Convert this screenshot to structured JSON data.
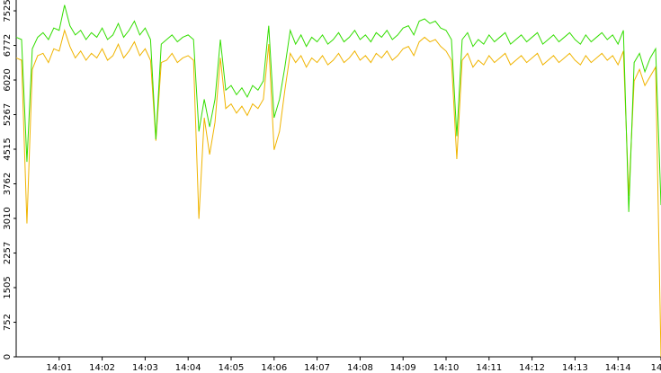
{
  "chart_data": {
    "type": "line",
    "categories": [
      null,
      null,
      null,
      null,
      null,
      null,
      null,
      null,
      "14:01",
      null,
      null,
      null,
      null,
      null,
      null,
      null,
      "14:02",
      null,
      null,
      null,
      null,
      null,
      null,
      null,
      "14:03",
      null,
      null,
      null,
      null,
      null,
      null,
      null,
      "14:04",
      null,
      null,
      null,
      null,
      null,
      null,
      null,
      "14:05",
      null,
      null,
      null,
      null,
      null,
      null,
      null,
      "14:06",
      null,
      null,
      null,
      null,
      null,
      null,
      null,
      "14:07",
      null,
      null,
      null,
      null,
      null,
      null,
      null,
      "14:08",
      null,
      null,
      null,
      null,
      null,
      null,
      null,
      "14:09",
      null,
      null,
      null,
      null,
      null,
      null,
      null,
      "14:10",
      null,
      null,
      null,
      null,
      null,
      null,
      null,
      "14:11",
      null,
      null,
      null,
      null,
      null,
      null,
      null,
      "14:12",
      null,
      null,
      null,
      null,
      null,
      null,
      null,
      "14:13",
      null,
      null,
      null,
      null,
      null,
      null,
      null,
      "14:14",
      null,
      null,
      null,
      null,
      null,
      null,
      null,
      "14"
    ],
    "series": [
      {
        "color": "#33dd00",
        "values": [
          6950,
          6900,
          4240,
          6700,
          6950,
          7050,
          6900,
          7150,
          7100,
          7650,
          7200,
          7000,
          7100,
          6900,
          7050,
          6950,
          7150,
          6900,
          7000,
          7250,
          6950,
          7100,
          7300,
          7000,
          7150,
          6900,
          4730,
          6800,
          6900,
          7000,
          6850,
          6950,
          7000,
          6900,
          4900,
          5600,
          5000,
          5600,
          6900,
          5800,
          5900,
          5700,
          5850,
          5650,
          5900,
          5800,
          6000,
          7200,
          5200,
          5600,
          6300,
          7100,
          6800,
          7000,
          6750,
          6950,
          6850,
          7000,
          6800,
          6900,
          7050,
          6850,
          6950,
          7100,
          6900,
          7000,
          6850,
          7050,
          6950,
          7100,
          6900,
          7000,
          7150,
          7200,
          7000,
          7300,
          7350,
          7250,
          7300,
          7150,
          7100,
          6900,
          4800,
          6900,
          7050,
          6750,
          6900,
          6800,
          7000,
          6850,
          6950,
          7050,
          6800,
          6900,
          7000,
          6850,
          6950,
          7050,
          6800,
          6900,
          7000,
          6850,
          6950,
          7050,
          6900,
          6800,
          7000,
          6850,
          6950,
          7050,
          6900,
          7000,
          6800,
          7100,
          3150,
          6400,
          6600,
          6200,
          6500,
          6700,
          3300
        ]
      },
      {
        "color": "#f0b400",
        "values": [
          6500,
          6450,
          2900,
          6250,
          6550,
          6600,
          6400,
          6700,
          6650,
          7100,
          6750,
          6500,
          6650,
          6450,
          6600,
          6500,
          6700,
          6450,
          6550,
          6800,
          6500,
          6650,
          6850,
          6550,
          6700,
          6450,
          4700,
          6400,
          6450,
          6600,
          6400,
          6500,
          6550,
          6450,
          3000,
          5200,
          4400,
          5100,
          6500,
          5400,
          5500,
          5300,
          5450,
          5250,
          5500,
          5400,
          5600,
          6800,
          4500,
          4900,
          5800,
          6600,
          6400,
          6550,
          6300,
          6500,
          6400,
          6550,
          6350,
          6450,
          6600,
          6400,
          6500,
          6650,
          6450,
          6550,
          6400,
          6600,
          6500,
          6650,
          6450,
          6550,
          6700,
          6750,
          6550,
          6850,
          6950,
          6850,
          6900,
          6750,
          6650,
          6450,
          4300,
          6450,
          6600,
          6300,
          6450,
          6350,
          6550,
          6400,
          6500,
          6600,
          6350,
          6450,
          6550,
          6400,
          6500,
          6600,
          6350,
          6450,
          6550,
          6400,
          6500,
          6600,
          6450,
          6350,
          6550,
          6400,
          6500,
          6600,
          6450,
          6550,
          6350,
          6650,
          3500,
          6000,
          6250,
          5900,
          6100,
          6300,
          0
        ]
      }
    ],
    "ylim": [
      0,
      7760
    ],
    "yticks": [
      0,
      752,
      1505,
      2257,
      3010,
      3762,
      4515,
      5267,
      6020,
      6772,
      7525
    ]
  }
}
